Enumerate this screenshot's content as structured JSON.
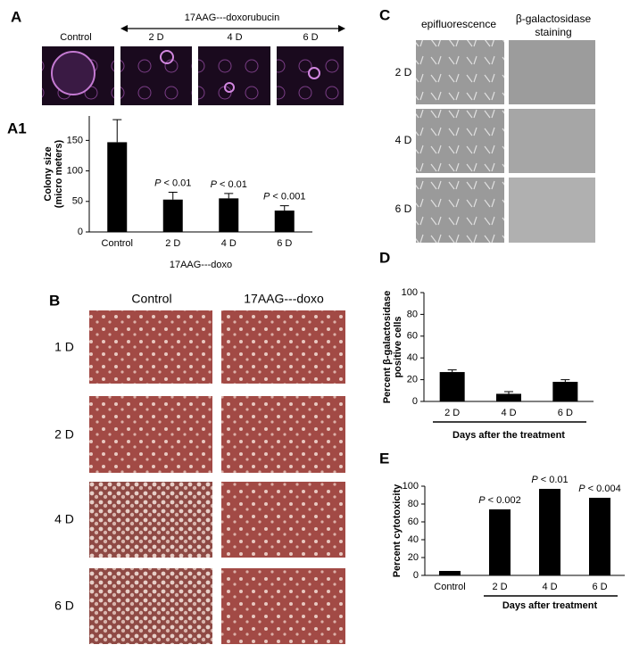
{
  "panel_labels": [
    "A",
    "A1",
    "B",
    "C",
    "D",
    "E"
  ],
  "panel_a": {
    "header": "17AAG---doxorubucin",
    "labels": [
      "Control",
      "2 D",
      "4 D",
      "6 D"
    ]
  },
  "panel_b": {
    "columns": [
      "Control",
      "17AAG---doxo"
    ],
    "rows": [
      "1 D",
      "2 D",
      "4 D",
      "6 D"
    ]
  },
  "panel_c": {
    "column_left": "epifluorescence",
    "column_right": [
      "β-galactosidase",
      "staining"
    ],
    "rows": [
      "2 D",
      "4 D",
      "6 D"
    ]
  },
  "chart_data": [
    {
      "type": "bar",
      "ylabel": [
        "Colony size",
        "(micro meters)"
      ],
      "xlabel": "17AAG---doxo",
      "categories": [
        "Control",
        "2 D",
        "4 D",
        "6 D"
      ],
      "values": [
        147,
        53,
        55,
        35
      ],
      "errors": [
        37,
        12,
        8,
        8
      ],
      "annotations": [
        null,
        "P < 0.01",
        "P < 0.01",
        "P < 0.001"
      ],
      "color": "#000000",
      "ylim": [
        0,
        190
      ],
      "yticks": [
        0,
        50,
        100,
        150
      ]
    },
    {
      "type": "bar",
      "ylabel": [
        "Percent β-galactosidase",
        "positive cells"
      ],
      "xlabel": "Days after the treatment",
      "categories": [
        "2 D",
        "4 D",
        "6 D"
      ],
      "values": [
        27,
        7,
        18
      ],
      "errors": [
        2,
        2,
        2
      ],
      "color": "#000000",
      "ylim": [
        0,
        100
      ],
      "yticks": [
        0,
        20,
        40,
        60,
        80,
        100
      ]
    },
    {
      "type": "bar",
      "ylabel": [
        "Percent cytotoxicity"
      ],
      "xlabel": "Days after treatment",
      "categories": [
        "Control",
        "2 D",
        "4 D",
        "6 D"
      ],
      "values": [
        5,
        74,
        97,
        87
      ],
      "annotations": [
        null,
        "P < 0.002",
        "P < 0.01",
        "P < 0.004"
      ],
      "color": "#000000",
      "ylim": [
        0,
        100
      ],
      "yticks": [
        0,
        20,
        40,
        60,
        80,
        100
      ]
    }
  ]
}
